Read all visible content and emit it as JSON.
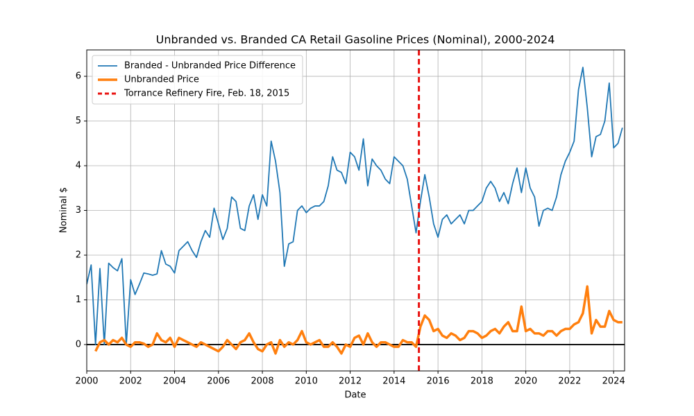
{
  "chart_data": {
    "type": "line",
    "title": "Unbranded vs. Branded CA Retail Gasoline Prices (Nominal), 2000-2024",
    "x_label": "Date",
    "y_label": "Nominal $",
    "x": [
      2000.0,
      2000.2,
      2000.4,
      2000.6,
      2000.8,
      2001.0,
      2001.2,
      2001.4,
      2001.6,
      2001.8,
      2002.0,
      2002.2,
      2002.4,
      2002.6,
      2002.8,
      2003.0,
      2003.2,
      2003.4,
      2003.6,
      2003.8,
      2004.0,
      2004.2,
      2004.4,
      2004.6,
      2004.8,
      2005.0,
      2005.2,
      2005.4,
      2005.6,
      2005.8,
      2006.0,
      2006.2,
      2006.4,
      2006.6,
      2006.8,
      2007.0,
      2007.2,
      2007.4,
      2007.6,
      2007.8,
      2008.0,
      2008.2,
      2008.4,
      2008.6,
      2008.8,
      2009.0,
      2009.2,
      2009.4,
      2009.6,
      2009.8,
      2010.0,
      2010.2,
      2010.4,
      2010.6,
      2010.8,
      2011.0,
      2011.2,
      2011.4,
      2011.6,
      2011.8,
      2012.0,
      2012.2,
      2012.4,
      2012.6,
      2012.8,
      2013.0,
      2013.2,
      2013.4,
      2013.6,
      2013.8,
      2014.0,
      2014.2,
      2014.4,
      2014.6,
      2014.8,
      2015.0,
      2015.2,
      2015.4,
      2015.6,
      2015.8,
      2016.0,
      2016.2,
      2016.4,
      2016.6,
      2016.8,
      2017.0,
      2017.2,
      2017.4,
      2017.6,
      2017.8,
      2018.0,
      2018.2,
      2018.4,
      2018.6,
      2018.8,
      2019.0,
      2019.2,
      2019.4,
      2019.6,
      2019.8,
      2020.0,
      2020.2,
      2020.4,
      2020.6,
      2020.8,
      2021.0,
      2021.2,
      2021.4,
      2021.6,
      2021.8,
      2022.0,
      2022.2,
      2022.4,
      2022.6,
      2022.8,
      2023.0,
      2023.2,
      2023.4,
      2023.6,
      2023.8,
      2024.0,
      2024.2,
      2024.4
    ],
    "series": [
      {
        "name": "Branded - Unbranded Price Difference",
        "color": "#1f77b4",
        "width": 1.8,
        "values": [
          1.35,
          1.78,
          0.0,
          1.7,
          0.0,
          1.82,
          1.72,
          1.65,
          1.92,
          0.0,
          1.45,
          1.12,
          1.35,
          1.6,
          1.58,
          1.55,
          1.58,
          2.1,
          1.8,
          1.75,
          1.6,
          2.1,
          2.2,
          2.3,
          2.1,
          1.95,
          2.3,
          2.55,
          2.4,
          3.05,
          2.7,
          2.35,
          2.6,
          3.3,
          3.2,
          2.6,
          2.55,
          3.1,
          3.35,
          2.8,
          3.35,
          3.1,
          4.55,
          4.1,
          3.4,
          1.75,
          2.25,
          2.3,
          3.0,
          3.1,
          2.95,
          3.05,
          3.1,
          3.1,
          3.2,
          3.55,
          4.2,
          3.9,
          3.85,
          3.6,
          4.3,
          4.2,
          3.9,
          4.6,
          3.55,
          4.15,
          4.0,
          3.9,
          3.7,
          3.6,
          4.2,
          4.1,
          4.0,
          3.7,
          3.1,
          2.5,
          3.2,
          3.8,
          3.3,
          2.7,
          2.4,
          2.8,
          2.9,
          2.7,
          2.8,
          2.9,
          2.7,
          3.0,
          3.0,
          3.1,
          3.2,
          3.5,
          3.65,
          3.5,
          3.2,
          3.4,
          3.15,
          3.6,
          3.95,
          3.4,
          3.95,
          3.5,
          3.3,
          2.65,
          3.0,
          3.05,
          3.0,
          3.3,
          3.8,
          4.1,
          4.3,
          4.55,
          5.7,
          6.2,
          5.3,
          4.2,
          4.65,
          4.7,
          5.0,
          5.85,
          4.4,
          4.5,
          4.85
        ]
      },
      {
        "name": "Unbranded Price",
        "color": "#ff7f0e",
        "width": 3.5,
        "values": [
          null,
          null,
          -0.15,
          0.05,
          0.1,
          0.0,
          0.1,
          0.05,
          0.15,
          0.0,
          -0.05,
          0.05,
          0.05,
          0.02,
          -0.05,
          0.0,
          0.25,
          0.1,
          0.05,
          0.15,
          -0.05,
          0.15,
          0.1,
          0.05,
          0.0,
          -0.05,
          0.05,
          0.0,
          -0.05,
          -0.1,
          -0.15,
          -0.05,
          0.1,
          0.0,
          -0.1,
          0.05,
          0.1,
          0.25,
          0.05,
          -0.1,
          -0.15,
          0.0,
          0.05,
          -0.2,
          0.1,
          -0.05,
          0.05,
          0.0,
          0.1,
          0.3,
          0.05,
          0.0,
          0.05,
          0.1,
          -0.05,
          -0.05,
          0.05,
          -0.05,
          -0.2,
          0.0,
          -0.05,
          0.15,
          0.2,
          0.0,
          0.25,
          0.05,
          -0.05,
          0.05,
          0.05,
          0.0,
          -0.05,
          -0.05,
          0.1,
          0.05,
          0.05,
          -0.05,
          0.4,
          0.65,
          0.55,
          0.3,
          0.35,
          0.2,
          0.15,
          0.25,
          0.2,
          0.1,
          0.15,
          0.3,
          0.3,
          0.25,
          0.15,
          0.2,
          0.3,
          0.35,
          0.25,
          0.4,
          0.5,
          0.3,
          0.3,
          0.85,
          0.3,
          0.35,
          0.25,
          0.25,
          0.2,
          0.3,
          0.3,
          0.2,
          0.3,
          0.35,
          0.35,
          0.45,
          0.5,
          0.7,
          1.3,
          0.25,
          0.55,
          0.4,
          0.4,
          0.75,
          0.55,
          0.5,
          0.5
        ]
      }
    ],
    "vline": {
      "x": 2015.13,
      "label": "Torrance Refinery Fire, Feb. 18, 2015",
      "color": "#e8110f"
    },
    "hline": {
      "y": 0,
      "color": "#000000"
    },
    "xlim": [
      2000,
      2024.5
    ],
    "ylim": [
      -0.59,
      6.59
    ],
    "xticks": [
      2000,
      2002,
      2004,
      2006,
      2008,
      2010,
      2012,
      2014,
      2016,
      2018,
      2020,
      2022,
      2024
    ],
    "yticks": [
      0,
      1,
      2,
      3,
      4,
      5,
      6
    ],
    "grid": true,
    "legend": "upper left"
  }
}
